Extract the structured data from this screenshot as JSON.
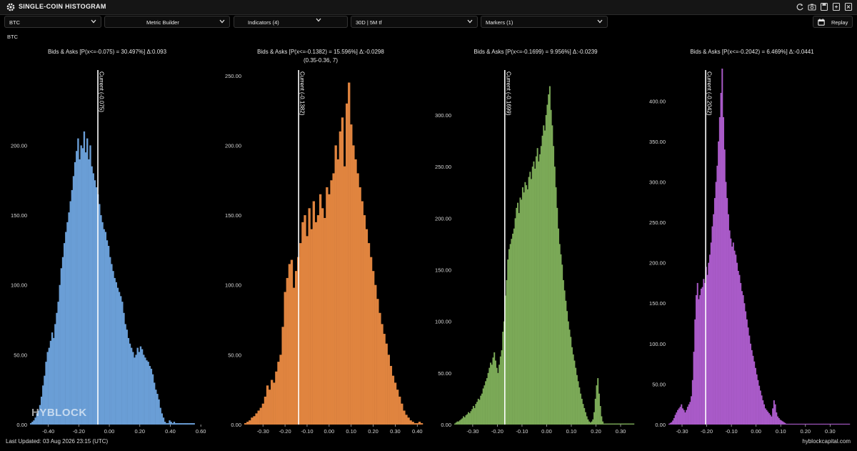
{
  "window": {
    "title": "SINGLE-COIN HISTOGRAM",
    "icons": [
      "refresh-icon",
      "camera-icon",
      "save-icon",
      "export-icon",
      "close-icon"
    ]
  },
  "toolbar": {
    "symbol_select": "BTC",
    "metric_builder": "Metric Builder",
    "indicators": "Indicators (4)",
    "timeframe": "30D | 5M tf",
    "markers": "Markers  (1)",
    "replay": "Replay"
  },
  "symbol_label": "BTC",
  "watermark": "HYBLOCK",
  "footer": {
    "last_updated": "Last Updated: 03 Aug 2026 23:15 (UTC)",
    "site": "hyblockcapital.com"
  },
  "colors": {
    "background": "#000000",
    "current_line": "#ffffff",
    "series": [
      "#6a9ed6",
      "#e0843f",
      "#7ba957",
      "#a95ac8"
    ]
  },
  "chart_data": [
    {
      "type": "bar",
      "title": "Bids & Asks [P(x<=-0.075) = 30.497%] Δ:0.093",
      "subtitle": "",
      "color": "#6a9ed6",
      "xlim": [
        -0.52,
        0.66
      ],
      "ylim": [
        0,
        255
      ],
      "xticks": [
        -0.4,
        -0.2,
        0.0,
        0.2,
        0.4,
        0.6
      ],
      "xtick_labels": [
        "-0.40",
        "-0.20",
        "0.00",
        "0.20",
        "0.40",
        "0.60"
      ],
      "yticks": [
        0,
        50,
        100,
        150,
        200
      ],
      "ytick_labels": [
        "0.00",
        "50.00",
        "100.00",
        "150.00",
        "200.00"
      ],
      "current": -0.075,
      "current_label": "Current (-0.075)",
      "bin_start": -0.52,
      "bin_width": 0.01,
      "values": [
        1,
        2,
        3,
        5,
        8,
        10,
        14,
        20,
        28,
        35,
        45,
        52,
        55,
        60,
        66,
        62,
        72,
        80,
        88,
        100,
        112,
        120,
        130,
        138,
        145,
        152,
        160,
        168,
        178,
        188,
        196,
        205,
        190,
        200,
        198,
        210,
        195,
        205,
        190,
        200,
        185,
        180,
        175,
        170,
        165,
        158,
        150,
        145,
        140,
        138,
        132,
        128,
        120,
        115,
        110,
        105,
        102,
        98,
        95,
        92,
        88,
        80,
        72,
        68,
        62,
        58,
        55,
        52,
        48,
        50,
        55,
        52,
        56,
        54,
        50,
        48,
        46,
        45,
        42,
        40,
        36,
        30,
        25,
        22,
        18,
        12,
        8,
        5,
        2,
        1,
        1,
        3,
        2,
        1,
        2,
        1,
        1,
        1,
        1,
        1,
        1,
        1,
        1,
        1,
        1,
        1,
        1,
        1
      ]
    },
    {
      "type": "bar",
      "title": "Bids & Asks [P(x<=-0.1382) = 15.596%] Δ:-0.0298",
      "subtitle": "(0.35-0.36, 7)",
      "color": "#e0843f",
      "xlim": [
        -0.385,
        0.425
      ],
      "ylim": [
        0,
        255
      ],
      "xticks": [
        -0.3,
        -0.2,
        -0.1,
        0.0,
        0.1,
        0.2,
        0.3,
        0.4
      ],
      "xtick_labels": [
        "-0.30",
        "-0.20",
        "-0.10",
        "0.00",
        "0.10",
        "0.20",
        "0.30",
        "0.40"
      ],
      "yticks": [
        0,
        50,
        100,
        150,
        200,
        250
      ],
      "ytick_labels": [
        "0.00",
        "50.00",
        "100.00",
        "150.00",
        "200.00",
        "250.00"
      ],
      "current": -0.1382,
      "current_label": "Current (-0.1382)",
      "bin_start": -0.385,
      "bin_width": 0.01,
      "values": [
        1,
        2,
        3,
        5,
        6,
        8,
        10,
        12,
        15,
        20,
        28,
        25,
        32,
        30,
        38,
        45,
        50,
        70,
        95,
        105,
        115,
        118,
        98,
        110,
        120,
        130,
        145,
        150,
        135,
        155,
        140,
        160,
        145,
        150,
        165,
        155,
        148,
        170,
        165,
        175,
        180,
        200,
        190,
        210,
        220,
        185,
        230,
        245,
        215,
        200,
        190,
        180,
        170,
        160,
        150,
        140,
        130,
        120,
        110,
        100,
        90,
        80,
        72,
        65,
        58,
        50,
        42,
        35,
        30,
        25,
        20,
        15,
        10,
        7,
        5,
        3,
        2,
        1,
        1,
        2,
        1
      ]
    },
    {
      "type": "bar",
      "title": "Bids & Asks [P(x<=-0.1699) = 9.956%] Δ:-0.0239",
      "subtitle": "",
      "color": "#7ba957",
      "xlim": [
        -0.375,
        0.355
      ],
      "ylim": [
        0,
        345
      ],
      "xticks": [
        -0.3,
        -0.2,
        -0.1,
        0.0,
        0.1,
        0.2,
        0.3
      ],
      "xtick_labels": [
        "-0.30",
        "-0.20",
        "-0.10",
        "0.00",
        "0.10",
        "0.20",
        "0.30"
      ],
      "yticks": [
        0,
        50,
        100,
        150,
        200,
        250,
        300
      ],
      "ytick_labels": [
        "0.00",
        "50.00",
        "100.00",
        "150.00",
        "200.00",
        "250.00",
        "300.00"
      ],
      "current": -0.1699,
      "current_label": "Current (-0.1699)",
      "bin_start": -0.375,
      "bin_width": 0.005,
      "values": [
        1,
        2,
        3,
        3,
        4,
        5,
        6,
        8,
        7,
        9,
        10,
        12,
        11,
        13,
        15,
        18,
        16,
        20,
        22,
        25,
        24,
        28,
        30,
        35,
        38,
        42,
        45,
        50,
        55,
        60,
        58,
        65,
        70,
        62,
        55,
        50,
        58,
        66,
        72,
        90,
        100,
        125,
        140,
        160,
        170,
        175,
        180,
        185,
        190,
        200,
        210,
        215,
        205,
        220,
        218,
        230,
        225,
        235,
        232,
        228,
        240,
        245,
        238,
        250,
        255,
        248,
        260,
        268,
        255,
        262,
        270,
        280,
        290,
        285,
        300,
        310,
        320,
        328,
        305,
        290,
        270,
        250,
        230,
        210,
        190,
        175,
        165,
        155,
        140,
        130,
        120,
        110,
        100,
        92,
        85,
        75,
        68,
        62,
        55,
        48,
        42,
        36,
        30,
        25,
        20,
        16,
        12,
        8,
        5,
        3,
        2,
        3,
        5,
        12,
        25,
        38,
        45,
        30,
        18,
        8,
        3,
        1,
        1,
        1,
        1,
        1,
        1,
        1,
        1,
        1,
        1,
        1,
        1,
        1,
        1,
        1,
        1,
        1,
        1,
        1,
        1,
        1,
        1,
        1,
        1,
        1
      ]
    },
    {
      "type": "bar",
      "title": "Bids & Asks [P(x<=-0.2042) = 6.469%] Δ:-0.0441",
      "subtitle": "",
      "color": "#a95ac8",
      "xlim": [
        -0.355,
        0.38
      ],
      "ylim": [
        0,
        440
      ],
      "xticks": [
        -0.3,
        -0.2,
        -0.1,
        0.0,
        0.1,
        0.2,
        0.3
      ],
      "xtick_labels": [
        "-0.30",
        "-0.20",
        "-0.10",
        "0.00",
        "0.10",
        "0.20",
        "0.30"
      ],
      "yticks": [
        0,
        50,
        100,
        150,
        200,
        250,
        300,
        350,
        400
      ],
      "ytick_labels": [
        "0.00",
        "50.00",
        "100.00",
        "150.00",
        "200.00",
        "250.00",
        "300.00",
        "350.00",
        "400.00"
      ],
      "current": -0.2042,
      "current_label": "Current (-0.2042)",
      "bin_start": -0.355,
      "bin_width": 0.005,
      "values": [
        1,
        2,
        3,
        5,
        8,
        12,
        15,
        18,
        20,
        22,
        25,
        20,
        18,
        15,
        18,
        22,
        25,
        28,
        35,
        55,
        90,
        130,
        160,
        175,
        155,
        160,
        168,
        170,
        180,
        175,
        195,
        185,
        200,
        210,
        225,
        245,
        260,
        280,
        300,
        320,
        350,
        380,
        410,
        440,
        380,
        340,
        300,
        280,
        260,
        240,
        230,
        220,
        225,
        215,
        210,
        200,
        190,
        185,
        175,
        165,
        160,
        150,
        140,
        130,
        120,
        110,
        100,
        92,
        85,
        78,
        70,
        62,
        55,
        48,
        42,
        36,
        30,
        25,
        20,
        18,
        16,
        14,
        12,
        10,
        20,
        30,
        25,
        15,
        10,
        8,
        6,
        5,
        4,
        3,
        2,
        1,
        1,
        1,
        1,
        1,
        1,
        1,
        1,
        1,
        1,
        1,
        1,
        1,
        1,
        1,
        1,
        1,
        1,
        1,
        1,
        1,
        1,
        1,
        1,
        1,
        1,
        1,
        1,
        1,
        1,
        1,
        1,
        1,
        1,
        1,
        1,
        1,
        1,
        1,
        1,
        1,
        1,
        1,
        1,
        1,
        1,
        1,
        1,
        1,
        1,
        1,
        1,
        1,
        1,
        1
      ]
    }
  ]
}
